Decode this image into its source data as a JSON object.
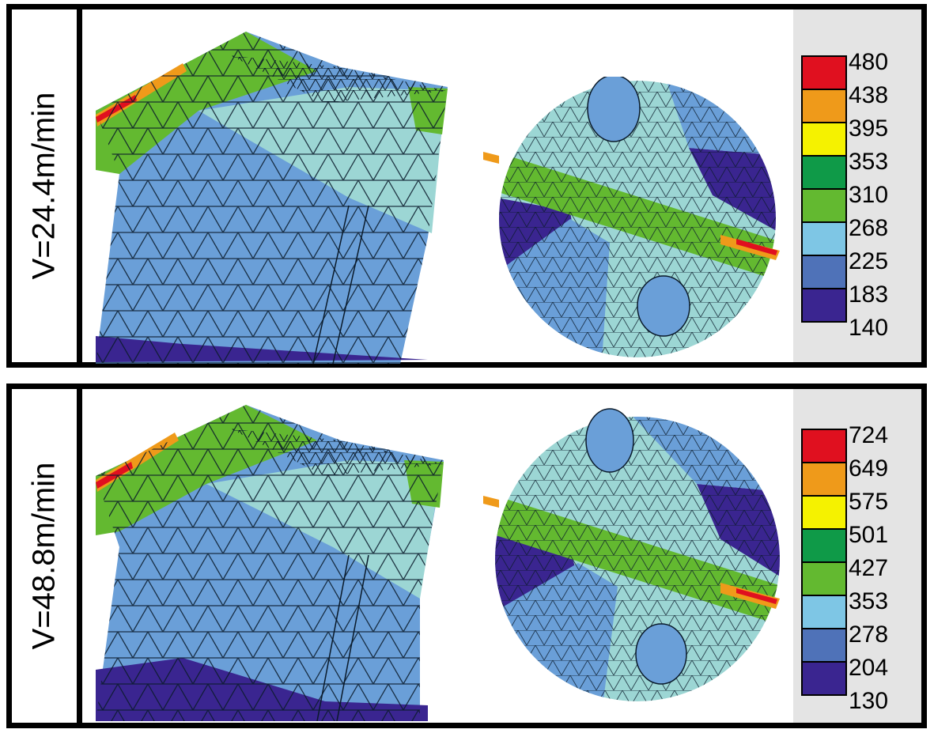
{
  "colors": {
    "c480": "#e0101f",
    "c438": "#ef9a1a",
    "c395": "#f5f200",
    "c353": "#0f9a48",
    "c310": "#63b930",
    "c268": "#7ec6e5",
    "c225": "#5f89c8",
    "c183": "#4f72b8",
    "c140": "#3a2590",
    "mesh_line": "#0a1a2a",
    "legend_bg": "#e4e4e4"
  },
  "panels": [
    {
      "label": "V=24.4m/min",
      "scale": [
        "480",
        "438",
        "395",
        "353",
        "310",
        "268",
        "225",
        "183",
        "140"
      ]
    },
    {
      "label": "V=48.8m/min",
      "scale": [
        "724",
        "649",
        "575",
        "501",
        "427",
        "353",
        "278",
        "204",
        "130"
      ]
    }
  ]
}
